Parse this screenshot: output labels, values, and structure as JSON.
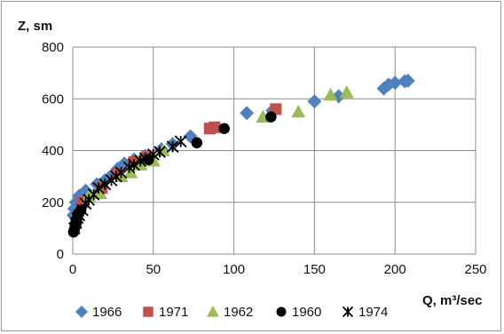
{
  "chart_data": {
    "type": "scatter",
    "ylabel": "Z, sm",
    "xlabel": "Q, m³/sec",
    "xlim": [
      0,
      250
    ],
    "ylim": [
      0,
      800
    ],
    "xticks": [
      "0",
      "50",
      "100",
      "150",
      "200",
      "250"
    ],
    "yticks": [
      "0",
      "200",
      "400",
      "600",
      "800"
    ],
    "grid": true,
    "legend_position": "bottom",
    "series": [
      {
        "name": "1966",
        "marker": "diamond",
        "color": "#4f81bd",
        "points": [
          [
            0.5,
            150
          ],
          [
            1,
            175
          ],
          [
            2,
            200
          ],
          [
            4,
            225
          ],
          [
            8,
            245
          ],
          [
            15,
            270
          ],
          [
            20,
            285
          ],
          [
            25,
            310
          ],
          [
            28,
            330
          ],
          [
            32,
            350
          ],
          [
            38,
            365
          ],
          [
            45,
            380
          ],
          [
            55,
            405
          ],
          [
            62,
            425
          ],
          [
            73,
            455
          ],
          [
            108,
            545
          ],
          [
            124,
            555
          ],
          [
            150,
            590
          ],
          [
            165,
            610
          ],
          [
            193,
            640
          ],
          [
            196,
            655
          ],
          [
            200,
            662
          ],
          [
            206,
            668
          ],
          [
            208,
            670
          ]
        ]
      },
      {
        "name": "1971",
        "marker": "square",
        "color": "#c0504d",
        "points": [
          [
            2,
            120
          ],
          [
            6,
            200
          ],
          [
            18,
            255
          ],
          [
            28,
            310
          ],
          [
            38,
            355
          ],
          [
            46,
            375
          ],
          [
            85,
            485
          ],
          [
            88,
            490
          ],
          [
            126,
            560
          ]
        ]
      },
      {
        "name": "1962",
        "marker": "triangle",
        "color": "#9bbb59",
        "points": [
          [
            3,
            165
          ],
          [
            10,
            225
          ],
          [
            17,
            235
          ],
          [
            30,
            300
          ],
          [
            36,
            315
          ],
          [
            42,
            345
          ],
          [
            50,
            360
          ],
          [
            56,
            400
          ],
          [
            118,
            530
          ],
          [
            140,
            550
          ],
          [
            160,
            615
          ],
          [
            170,
            625
          ]
        ]
      },
      {
        "name": "1960",
        "marker": "circle",
        "color": "#000000",
        "points": [
          [
            0.5,
            85
          ],
          [
            1,
            95
          ],
          [
            1.5,
            110
          ],
          [
            2,
            120
          ],
          [
            2.5,
            135
          ],
          [
            3,
            150
          ],
          [
            4,
            160
          ],
          [
            5,
            170
          ],
          [
            47,
            365
          ],
          [
            77,
            430
          ],
          [
            94,
            485
          ],
          [
            123,
            530
          ]
        ]
      },
      {
        "name": "1974",
        "marker": "asterisk",
        "color": "#000000",
        "points": [
          [
            1,
            100
          ],
          [
            2,
            120
          ],
          [
            3,
            140
          ],
          [
            4,
            150
          ],
          [
            6,
            170
          ],
          [
            8,
            195
          ],
          [
            10,
            210
          ],
          [
            13,
            230
          ],
          [
            16,
            255
          ],
          [
            20,
            270
          ],
          [
            24,
            285
          ],
          [
            27,
            300
          ],
          [
            30,
            315
          ],
          [
            35,
            335
          ],
          [
            38,
            345
          ],
          [
            42,
            360
          ],
          [
            45,
            370
          ],
          [
            50,
            385
          ],
          [
            54,
            395
          ],
          [
            62,
            415
          ],
          [
            67,
            435
          ]
        ]
      }
    ]
  }
}
